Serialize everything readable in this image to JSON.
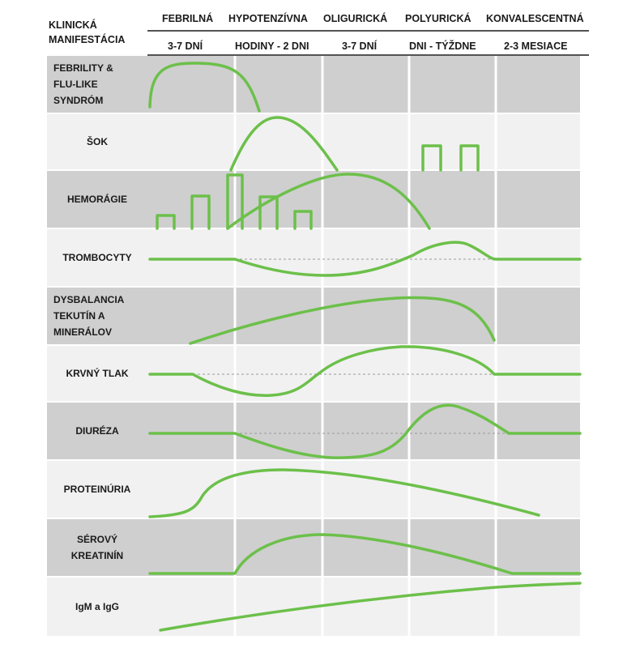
{
  "header": {
    "corner_label": "KLINICKÁ\nMANIFESTÁCIA",
    "phases": [
      {
        "name": "FEBRILNÁ",
        "duration": "3-7 DNÍ"
      },
      {
        "name": "HYPOTENZÍVNA",
        "duration": "HODINY - 2 DNI"
      },
      {
        "name": "OLIGURICKÁ",
        "duration": "3-7 DNÍ"
      },
      {
        "name": "POLYURICKÁ",
        "duration": "DNI - TÝŽDNE"
      },
      {
        "name": "KONVALESCENTNÁ",
        "duration": "2-3 MESIACE"
      }
    ]
  },
  "rows": [
    {
      "label": "FEBRILITY &\nFLU-LIKE\nSYNDRÓM"
    },
    {
      "label": "ŠOK"
    },
    {
      "label": "HEMORÁGIE"
    },
    {
      "label": "TROMBOCYTY"
    },
    {
      "label": "DYSBALANCIA\nTEKUTÍN A\nMINERÁLOV"
    },
    {
      "label": "KRVNÝ TLAK"
    },
    {
      "label": "DIURÉZA"
    },
    {
      "label": "PROTEINÚRIA"
    },
    {
      "label": "SÉROVÝ\nKREATINÍN"
    },
    {
      "label": "IgM a IgG"
    }
  ],
  "colors": {
    "curve": "#6cc04a",
    "band_dark": "#cfcfcf",
    "band_light": "#f1f1f1",
    "divider": "#ffffff",
    "baseline_dash": "#9a9a9a"
  }
}
